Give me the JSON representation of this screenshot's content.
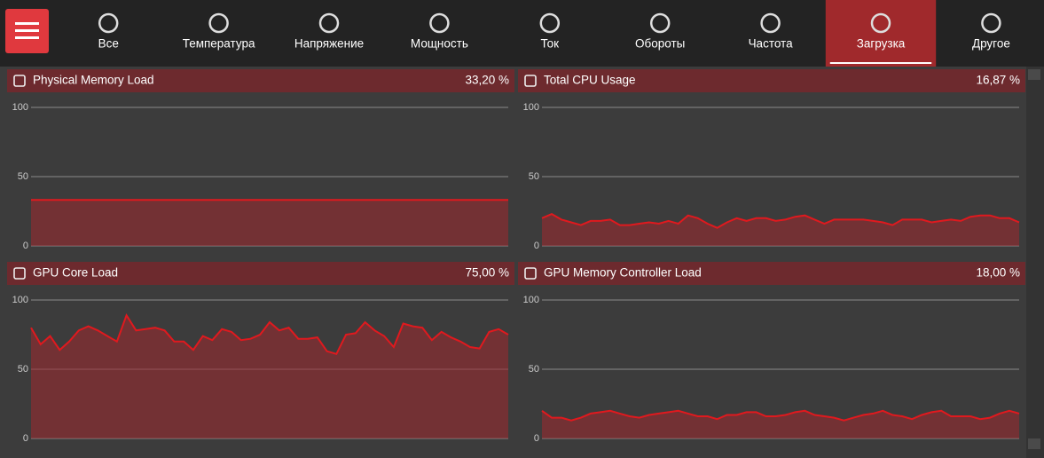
{
  "nav": {
    "active": 7,
    "tabs": [
      "Все",
      "Температура",
      "Напряжение",
      "Мощность",
      "Ток",
      "Обороты",
      "Частота",
      "Загрузка",
      "Другое"
    ]
  },
  "chart_data": [
    {
      "type": "area",
      "title": "Physical Memory Load",
      "current_label": "33,20 %",
      "color": "#e0191e",
      "ylim": [
        0,
        100
      ],
      "yticks": [
        0,
        50,
        100
      ],
      "grid": true,
      "values": [
        33.2,
        33.2,
        33.2,
        33.2,
        33.2,
        33.2,
        33.2,
        33.2,
        33.2,
        33.2,
        33.2,
        33.2,
        33.2,
        33.2,
        33.2,
        33.2,
        33.2,
        33.2,
        33.2,
        33.2,
        33.2,
        33.2,
        33.2,
        33.2,
        33.2,
        33.2,
        33.2,
        33.2,
        33.2,
        33.2,
        33.2,
        33.2,
        33.2,
        33.2,
        33.2,
        33.2,
        33.2,
        33.2,
        33.2,
        33.2,
        33.2,
        33.2,
        33.2,
        33.2,
        33.2,
        33.2,
        33.2,
        33.2,
        33.2,
        33.2
      ]
    },
    {
      "type": "area",
      "title": "Total CPU Usage",
      "current_label": "16,87 %",
      "color": "#e0191e",
      "ylim": [
        0,
        100
      ],
      "yticks": [
        0,
        50,
        100
      ],
      "grid": true,
      "values": [
        20,
        23,
        19,
        17,
        15,
        18,
        18,
        19,
        15,
        15,
        16,
        17,
        16,
        18,
        16,
        22,
        20,
        16,
        13,
        17,
        20,
        18,
        20,
        20,
        18,
        19,
        21,
        22,
        19,
        16,
        19,
        19,
        19,
        19,
        18,
        17,
        15,
        19,
        19,
        19,
        17,
        18,
        19,
        18,
        21,
        22,
        22,
        20,
        20,
        17
      ]
    },
    {
      "type": "area",
      "title": "GPU Core Load",
      "current_label": "75,00 %",
      "color": "#e0191e",
      "ylim": [
        0,
        100
      ],
      "yticks": [
        0,
        50,
        100
      ],
      "grid": true,
      "values": [
        80,
        68,
        74,
        64,
        70,
        78,
        81,
        78,
        74,
        70,
        89,
        78,
        79,
        80,
        78,
        70,
        70,
        64,
        74,
        71,
        79,
        77,
        71,
        72,
        75,
        84,
        78,
        80,
        72,
        72,
        73,
        63,
        61,
        75,
        76,
        84,
        78,
        74,
        66,
        83,
        81,
        80,
        71,
        77,
        73,
        70,
        66,
        65,
        77,
        79,
        75
      ]
    },
    {
      "type": "area",
      "title": "GPU Memory Controller Load",
      "current_label": "18,00 %",
      "color": "#e0191e",
      "ylim": [
        0,
        100
      ],
      "yticks": [
        0,
        50,
        100
      ],
      "grid": true,
      "values": [
        20,
        15,
        15,
        13,
        15,
        18,
        19,
        20,
        18,
        16,
        15,
        17,
        18,
        19,
        20,
        18,
        16,
        16,
        14,
        17,
        17,
        19,
        19,
        16,
        16,
        17,
        19,
        20,
        17,
        16,
        15,
        13,
        15,
        17,
        18,
        20,
        17,
        16,
        14,
        17,
        19,
        20,
        16,
        16,
        16,
        14,
        15,
        18,
        20,
        18
      ]
    }
  ]
}
